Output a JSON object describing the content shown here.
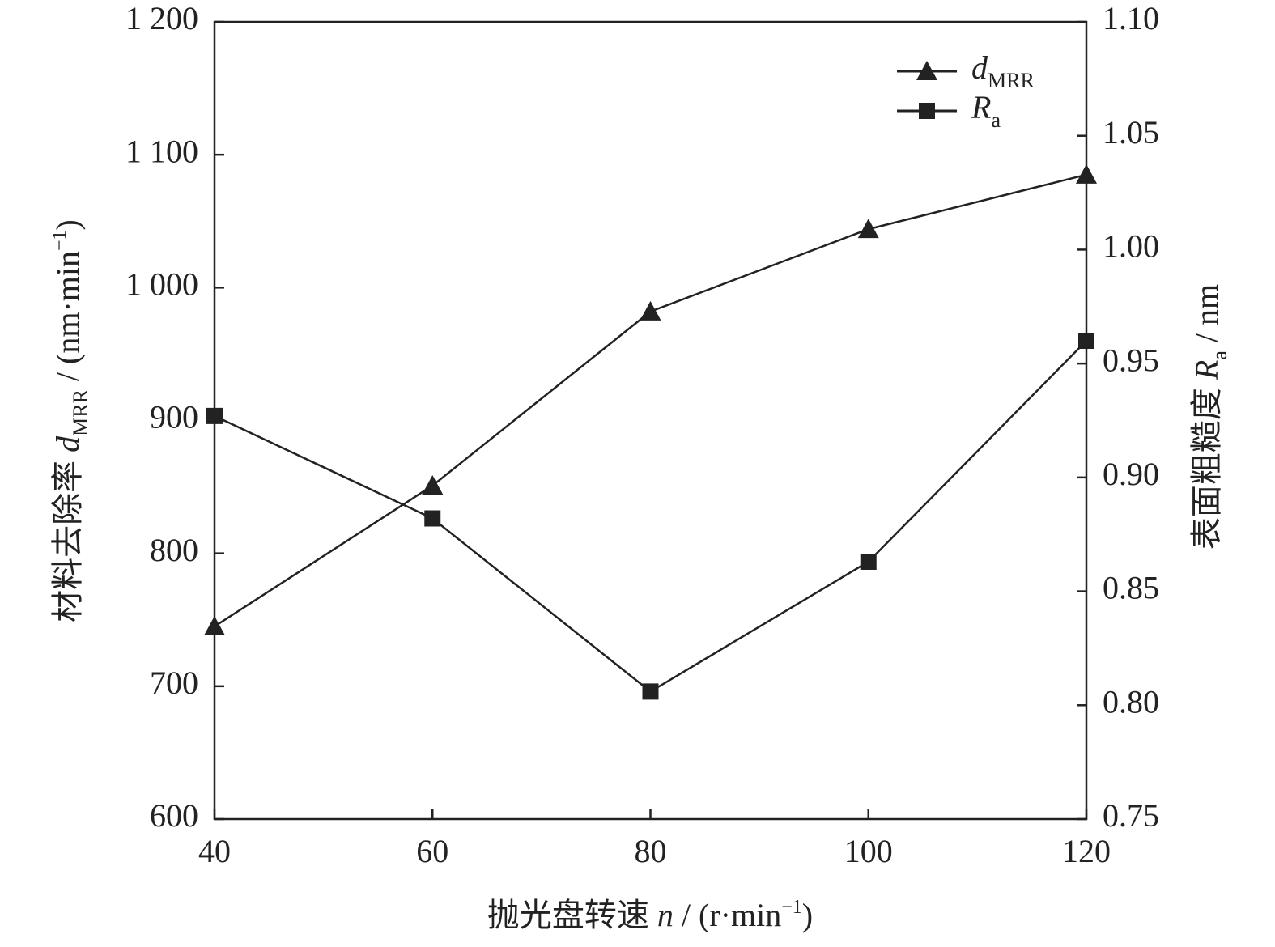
{
  "chart_data": {
    "type": "line",
    "x_label": [
      "抛光盘转速 ",
      "n",
      " / (r·min",
      "−1",
      ")"
    ],
    "y_label": [
      "材料去除率 ",
      "d",
      "MRR",
      " / (nm·min",
      "−1",
      ")"
    ],
    "y2_label": [
      "表面粗糙度 ",
      "R",
      "a",
      " / nm"
    ],
    "x": [
      40,
      60,
      80,
      100,
      120
    ],
    "xlim": [
      40,
      120
    ],
    "xticks": [
      40,
      60,
      80,
      100,
      120
    ],
    "ylim": [
      600,
      1200
    ],
    "yticks": [
      600,
      700,
      800,
      900,
      {
        "value": 1000,
        "label": "1 000"
      },
      {
        "value": 1100,
        "label": "1 100"
      },
      {
        "value": 1200,
        "label": "1 200"
      }
    ],
    "y2lim": [
      0.75,
      1.1
    ],
    "y2ticks": [
      0.75,
      {
        "value": 0.8,
        "label": "0.80"
      },
      0.85,
      {
        "value": 0.9,
        "label": "0.90"
      },
      0.95,
      {
        "value": 1.0,
        "label": "1.00"
      },
      1.05,
      {
        "value": 1.1,
        "label": "1.10"
      }
    ],
    "legend": "upper right",
    "series": [
      {
        "name": [
          "d",
          "MRR"
        ],
        "color": "#222222",
        "marker": "triangle",
        "values": [
          745,
          851,
          982,
          1044,
          1085
        ]
      },
      {
        "name": [
          "R",
          "a"
        ],
        "color": "#222222",
        "marker": "square",
        "axis": "y2",
        "values": [
          0.927,
          0.882,
          0.806,
          0.863,
          0.96
        ]
      }
    ]
  }
}
